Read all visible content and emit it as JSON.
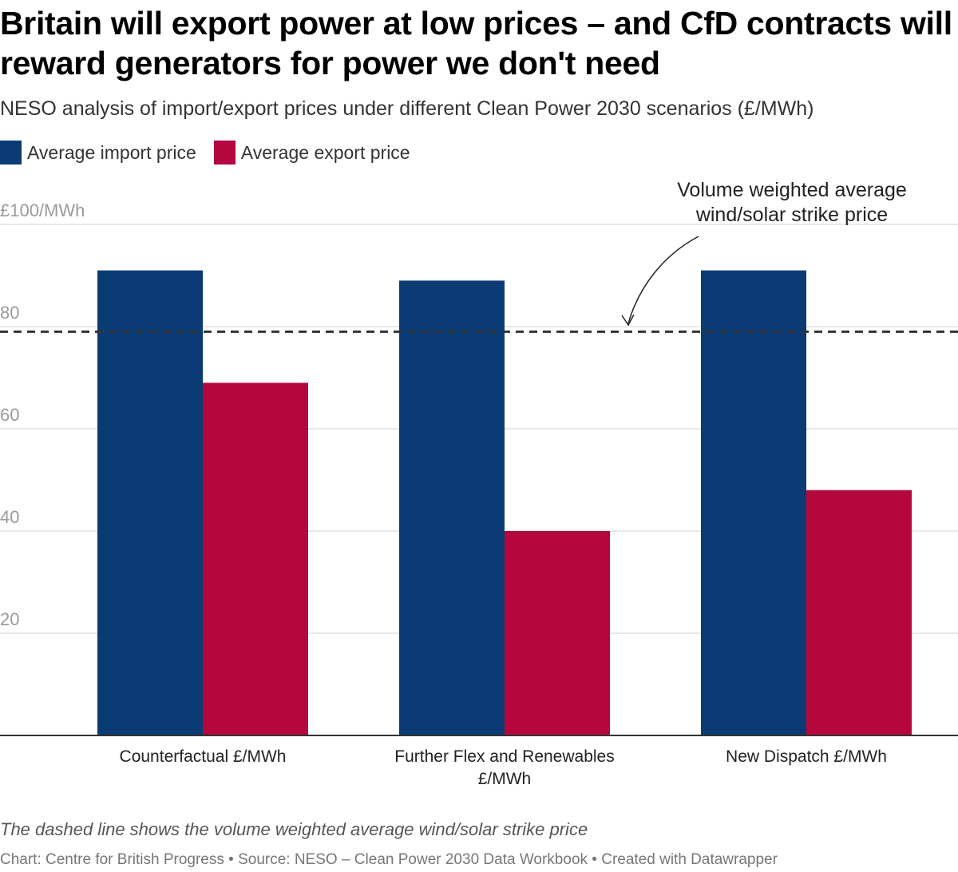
{
  "title": "Britain will export power at low prices – and CfD contracts will reward generators for power we don't need",
  "subtitle": "NESO analysis of import/export prices under different Clean Power 2030 scenarios (£/MWh)",
  "notes": "The dashed line shows the volume weighted average wind/solar strike price",
  "footer": "Chart: Centre for British Progress • Source: NESO – Clean Power 2030 Data Workbook • Created with Datawrapper",
  "colors": {
    "import": "#0b3b74",
    "export": "#b3073d"
  },
  "chart_data": {
    "type": "bar",
    "categories": [
      [
        "Counterfactual £/MWh"
      ],
      [
        "Further Flex and Renewables",
        "£/MWh"
      ],
      [
        "New Dispatch £/MWh"
      ]
    ],
    "series": [
      {
        "name": "Average import price",
        "values": [
          91,
          89,
          91
        ]
      },
      {
        "name": "Average export price",
        "values": [
          69,
          40,
          48
        ]
      }
    ],
    "ylim": [
      0,
      100
    ],
    "yticks": [
      {
        "value": 100,
        "label": "£100/MWh"
      },
      {
        "value": 80,
        "label": "80"
      },
      {
        "value": 60,
        "label": "60"
      },
      {
        "value": 40,
        "label": "40"
      },
      {
        "value": 20,
        "label": "20"
      }
    ],
    "grid": true,
    "legend": "top-left",
    "reference_line": {
      "value": 79,
      "label": [
        "Volume weighted average",
        "wind/solar strike price"
      ]
    }
  }
}
